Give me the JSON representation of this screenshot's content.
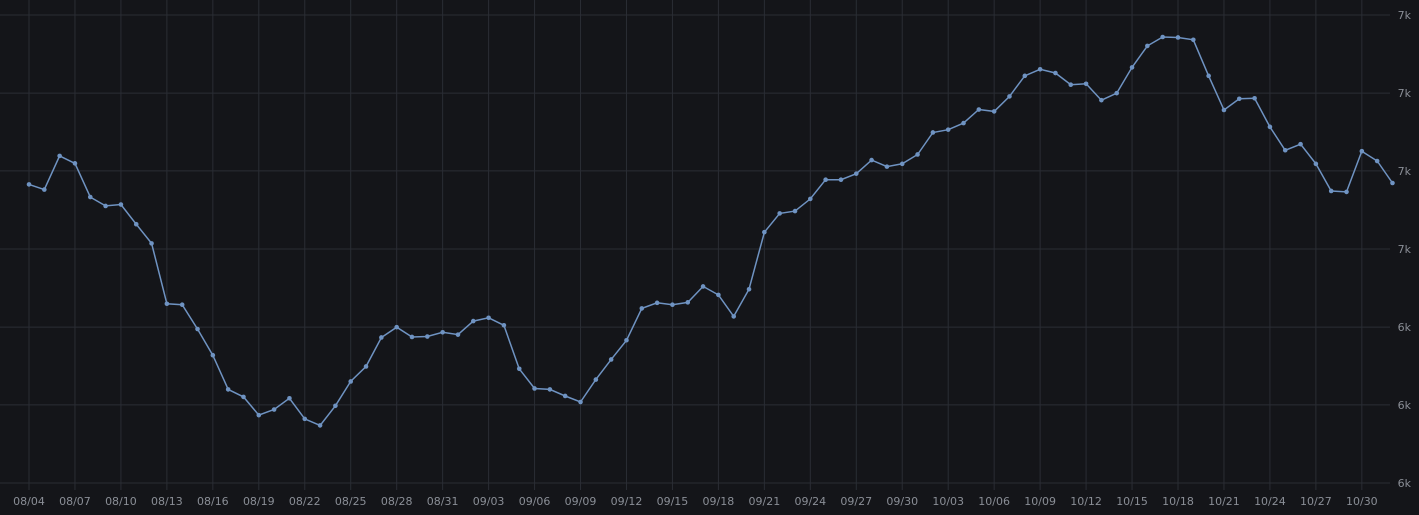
{
  "colors": {
    "background": "#141519",
    "grid": "#2a2d34",
    "series": "#6f93c2",
    "tick_text": "#8a8e96"
  },
  "chart_data": {
    "type": "line",
    "title": "",
    "xlabel": "",
    "ylabel": "",
    "y_axis_side": "right",
    "ylim": [
      6000,
      7000
    ],
    "y_ticks": [
      {
        "value": 7000,
        "label": "7k"
      },
      {
        "value": 6833,
        "label": "7k"
      },
      {
        "value": 6667,
        "label": "7k"
      },
      {
        "value": 6500,
        "label": "7k"
      },
      {
        "value": 6333,
        "label": "6k"
      },
      {
        "value": 6167,
        "label": "6k"
      },
      {
        "value": 6000,
        "label": "6k"
      }
    ],
    "grid": true,
    "x_tick_labels": [
      "08/04",
      "08/07",
      "08/10",
      "08/13",
      "08/16",
      "08/19",
      "08/22",
      "08/25",
      "08/28",
      "08/31",
      "09/03",
      "09/06",
      "09/09",
      "09/12",
      "09/15",
      "09/18",
      "09/21",
      "09/24",
      "09/27",
      "09/30",
      "10/03",
      "10/06",
      "10/09",
      "10/12",
      "10/15",
      "10/18",
      "10/21",
      "10/24",
      "10/27",
      "10/30"
    ],
    "series": [
      {
        "name": "",
        "x": [
          "08/04",
          "08/05",
          "08/06",
          "08/07",
          "08/08",
          "08/09",
          "08/10",
          "08/11",
          "08/12",
          "08/13",
          "08/14",
          "08/15",
          "08/16",
          "08/17",
          "08/18",
          "08/19",
          "08/20",
          "08/21",
          "08/22",
          "08/23",
          "08/24",
          "08/25",
          "08/26",
          "08/27",
          "08/28",
          "08/29",
          "08/30",
          "08/31",
          "09/01",
          "09/02",
          "09/03",
          "09/04",
          "09/05",
          "09/06",
          "09/07",
          "09/08",
          "09/09",
          "09/10",
          "09/11",
          "09/12",
          "09/13",
          "09/14",
          "09/15",
          "09/16",
          "09/17",
          "09/18",
          "09/19",
          "09/20",
          "09/21",
          "09/22",
          "09/23",
          "09/24",
          "09/25",
          "09/26",
          "09/27",
          "09/28",
          "09/29",
          "09/30",
          "10/01",
          "10/02",
          "10/03",
          "10/04",
          "10/05",
          "10/06",
          "10/07",
          "10/08",
          "10/09",
          "10/10",
          "10/11",
          "10/12",
          "10/13",
          "10/14",
          "10/15",
          "10/16",
          "10/17",
          "10/18",
          "10/19",
          "10/20",
          "10/21",
          "10/22",
          "10/23",
          "10/24",
          "10/25",
          "10/26",
          "10/27",
          "10/28",
          "10/29",
          "10/30",
          "10/31",
          "11/01"
        ],
        "values": [
          6638,
          6627,
          6699,
          6683,
          6611,
          6592,
          6595,
          6553,
          6512,
          6383,
          6381,
          6329,
          6273,
          6200,
          6184,
          6145,
          6157,
          6181,
          6137,
          6123,
          6165,
          6217,
          6249,
          6311,
          6333,
          6312,
          6313,
          6322,
          6317,
          6346,
          6353,
          6337,
          6244,
          6202,
          6200,
          6186,
          6173,
          6221,
          6264,
          6305,
          6373,
          6385,
          6381,
          6386,
          6420,
          6402,
          6356,
          6414,
          6536,
          6576,
          6581,
          6607,
          6648,
          6648,
          6661,
          6690,
          6676,
          6682,
          6702,
          6749,
          6755,
          6769,
          6798,
          6794,
          6826,
          6870,
          6884,
          6876,
          6851,
          6853,
          6818,
          6833,
          6888,
          6934,
          6953,
          6952,
          6947,
          6870,
          6797,
          6821,
          6822,
          6761,
          6711,
          6724,
          6682,
          6624,
          6622,
          6709,
          6688,
          6641
        ]
      }
    ]
  }
}
